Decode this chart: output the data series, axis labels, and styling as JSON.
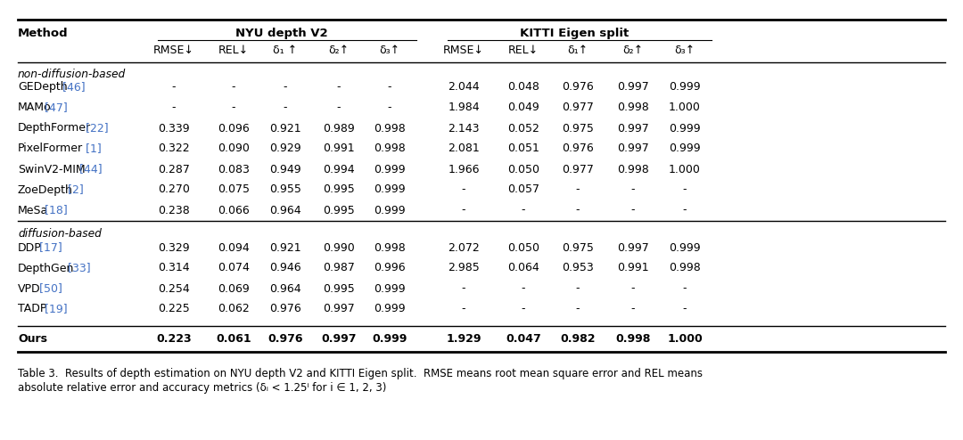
{
  "title_group1": "NYU depth V2",
  "title_group2": "KITTI Eigen split",
  "col_header1": "Method",
  "col_headers_nyu": [
    "RMSE↓",
    "REL↓",
    "δ₁ ↑",
    "δ₂↑",
    "δ₃↑"
  ],
  "col_headers_kitti": [
    "RMSE↓",
    "REL↓",
    "δ₁↑",
    "δ₂↑",
    "δ₃↑"
  ],
  "section1_label": "non-diffusion-based",
  "section2_label": "diffusion-based",
  "rows": [
    {
      "method": "GEDepth",
      "ref": "46",
      "nyu": [
        "-",
        "-",
        "-",
        "-",
        "-"
      ],
      "kitti": [
        "2.044",
        "0.048",
        "0.976",
        "0.997",
        "0.999"
      ],
      "section": 1
    },
    {
      "method": "MAMo",
      "ref": "47",
      "nyu": [
        "-",
        "-",
        "-",
        "-",
        "-"
      ],
      "kitti": [
        "1.984",
        "0.049",
        "0.977",
        "0.998",
        "1.000"
      ],
      "section": 1
    },
    {
      "method": "DepthFormer",
      "ref": "22",
      "nyu": [
        "0.339",
        "0.096",
        "0.921",
        "0.989",
        "0.998"
      ],
      "kitti": [
        "2.143",
        "0.052",
        "0.975",
        "0.997",
        "0.999"
      ],
      "section": 1
    },
    {
      "method": "PixelFormer",
      "ref": "1",
      "nyu": [
        "0.322",
        "0.090",
        "0.929",
        "0.991",
        "0.998"
      ],
      "kitti": [
        "2.081",
        "0.051",
        "0.976",
        "0.997",
        "0.999"
      ],
      "section": 1
    },
    {
      "method": "SwinV2-MIM",
      "ref": "44",
      "nyu": [
        "0.287",
        "0.083",
        "0.949",
        "0.994",
        "0.999"
      ],
      "kitti": [
        "1.966",
        "0.050",
        "0.977",
        "0.998",
        "1.000"
      ],
      "section": 1
    },
    {
      "method": "ZoeDepth",
      "ref": "2",
      "nyu": [
        "0.270",
        "0.075",
        "0.955",
        "0.995",
        "0.999"
      ],
      "kitti": [
        "-",
        "0.057",
        "-",
        "-",
        "-"
      ],
      "section": 1
    },
    {
      "method": "MeSa",
      "ref": "18",
      "nyu": [
        "0.238",
        "0.066",
        "0.964",
        "0.995",
        "0.999"
      ],
      "kitti": [
        "-",
        "-",
        "-",
        "-",
        "-"
      ],
      "section": 1
    },
    {
      "method": "DDP",
      "ref": "17",
      "nyu": [
        "0.329",
        "0.094",
        "0.921",
        "0.990",
        "0.998"
      ],
      "kitti": [
        "2.072",
        "0.050",
        "0.975",
        "0.997",
        "0.999"
      ],
      "section": 2
    },
    {
      "method": "DepthGen",
      "ref": "33",
      "nyu": [
        "0.314",
        "0.074",
        "0.946",
        "0.987",
        "0.996"
      ],
      "kitti": [
        "2.985",
        "0.064",
        "0.953",
        "0.991",
        "0.998"
      ],
      "section": 2
    },
    {
      "method": "VPD",
      "ref": "50",
      "nyu": [
        "0.254",
        "0.069",
        "0.964",
        "0.995",
        "0.999"
      ],
      "kitti": [
        "-",
        "-",
        "-",
        "-",
        "-"
      ],
      "section": 2
    },
    {
      "method": "TADP",
      "ref": "19",
      "nyu": [
        "0.225",
        "0.062",
        "0.976",
        "0.997",
        "0.999"
      ],
      "kitti": [
        "-",
        "-",
        "-",
        "-",
        "-"
      ],
      "section": 2
    }
  ],
  "ours_row": {
    "method": "Ours",
    "nyu": [
      "0.223",
      "0.061",
      "0.976",
      "0.997",
      "0.999"
    ],
    "kitti": [
      "1.929",
      "0.047",
      "0.982",
      "0.998",
      "1.000"
    ]
  },
  "caption_line1": "Table 3.  Results of depth estimation on NYU depth V2 and KITTI Eigen split.  RMSE means root mean square error and REL means",
  "caption_line2": "absolute relative error and accuracy metrics (δᵢ < 1.25ⁱ for i ∈ 1, 2, 3)",
  "ref_color": "#4472c4",
  "background_color": "#ffffff",
  "nondiff_count": 7
}
